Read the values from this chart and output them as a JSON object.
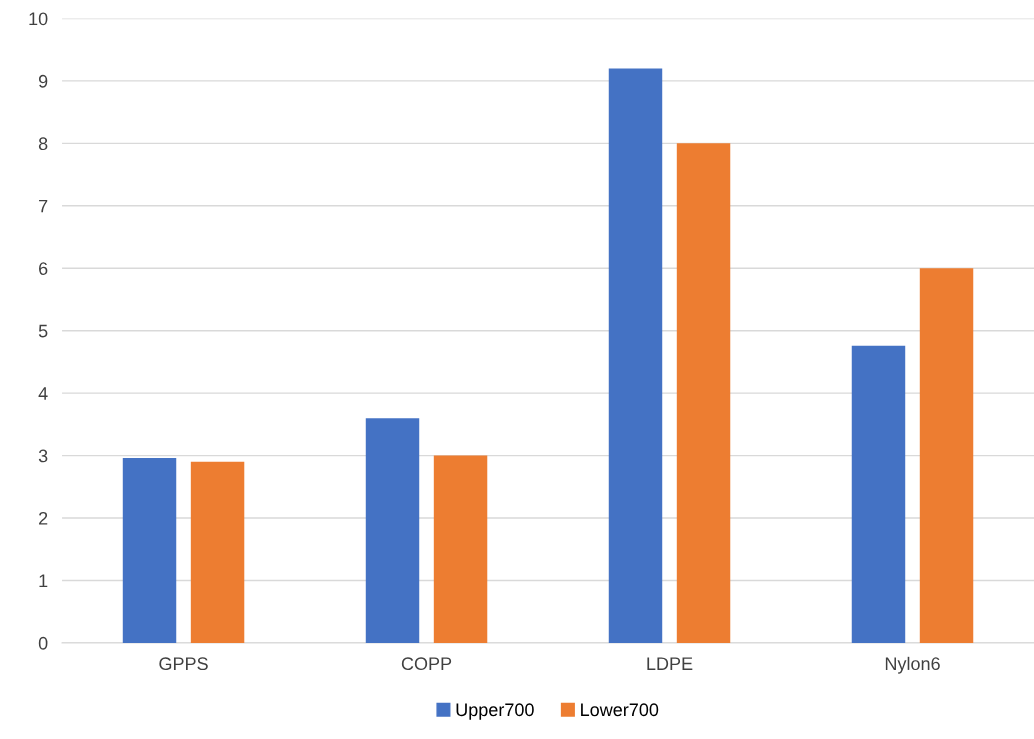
{
  "chart_data": {
    "type": "bar",
    "categories": [
      "GPPS",
      "COPP",
      "LDPE",
      "Nylon6"
    ],
    "series": [
      {
        "name": "Upper700",
        "color": "#4472c4",
        "values": [
          2.96,
          3.6,
          9.2,
          4.76
        ]
      },
      {
        "name": "Lower700",
        "color": "#ed7d31",
        "values": [
          2.9,
          3.0,
          8.0,
          6.0
        ]
      }
    ],
    "ylim": [
      0,
      10
    ],
    "yticks": [
      0,
      1,
      2,
      3,
      4,
      5,
      6,
      7,
      8,
      9,
      10
    ],
    "grid": "y",
    "legend": "bottom"
  }
}
